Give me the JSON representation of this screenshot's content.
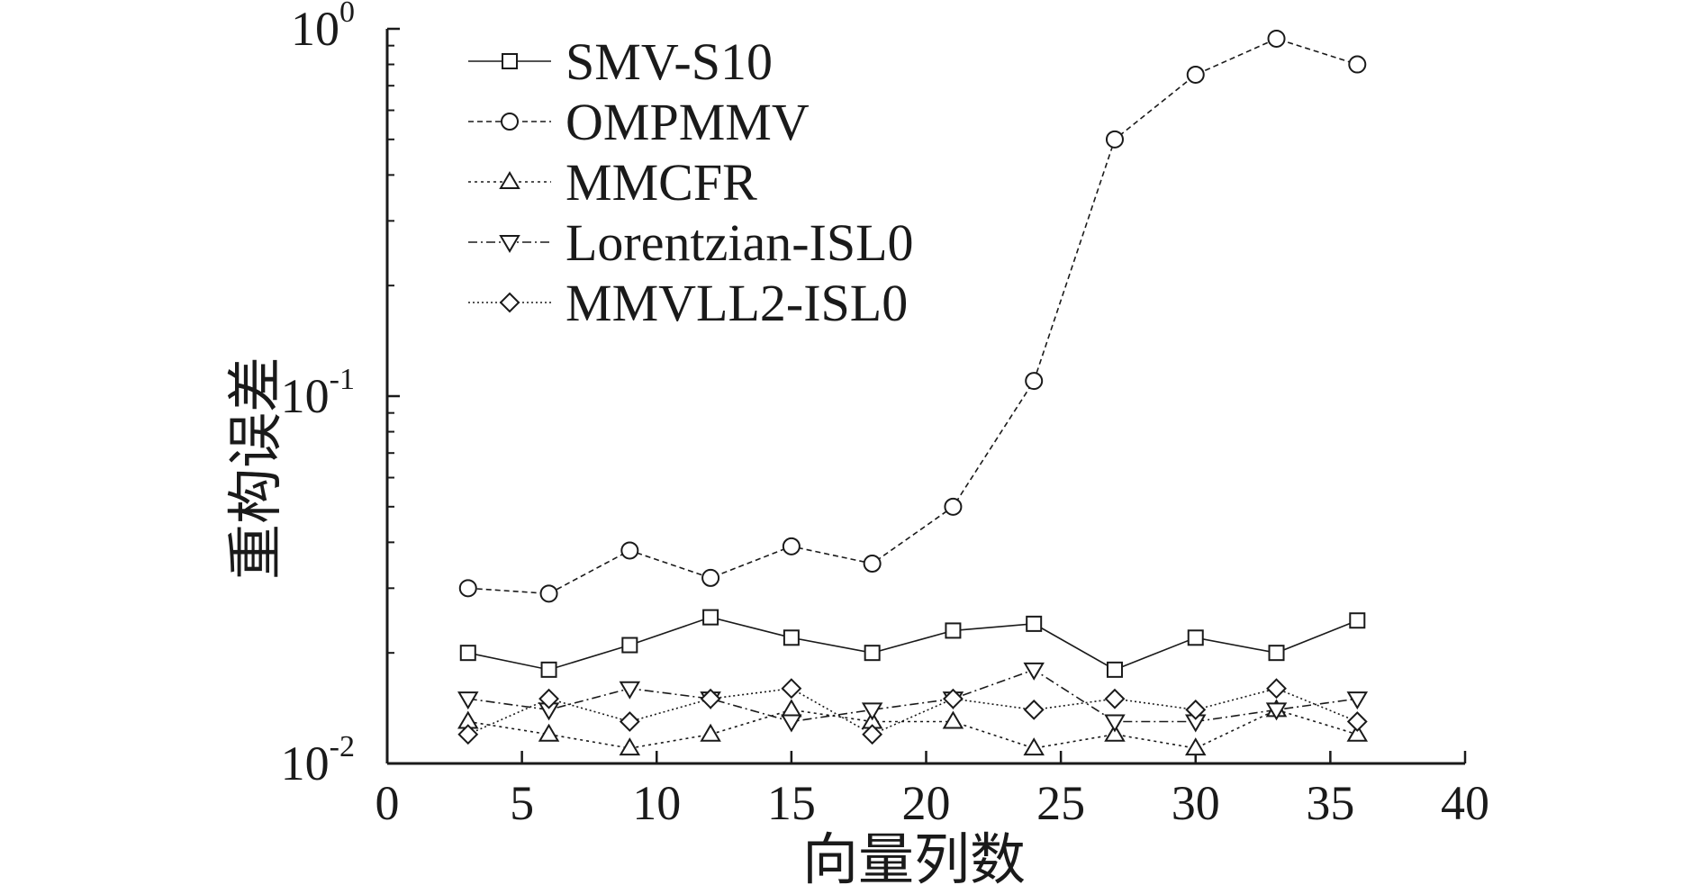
{
  "chart_data": {
    "type": "line",
    "xlabel": "向量列数",
    "ylabel": "重构误差",
    "xlim": [
      0,
      40
    ],
    "ylim": [
      0.01,
      1
    ],
    "yscale": "log",
    "xticks": [
      "0",
      "5",
      "10",
      "15",
      "20",
      "25",
      "30",
      "35",
      "40"
    ],
    "yticks": [
      {
        "base": "10",
        "exp": "-2",
        "value": 0.01
      },
      {
        "base": "10",
        "exp": "-1",
        "value": 0.1
      },
      {
        "base": "10",
        "exp": "0",
        "value": 1
      }
    ],
    "legend_position": "top-left",
    "grid": false,
    "x": [
      3,
      6,
      9,
      12,
      15,
      18,
      21,
      24,
      27,
      30,
      33,
      36
    ],
    "series": [
      {
        "name": "SMV-S10",
        "marker": "square",
        "line": "solid",
        "values": [
          0.02,
          0.018,
          0.021,
          0.025,
          0.022,
          0.02,
          0.023,
          0.024,
          0.018,
          0.022,
          0.02,
          0.0245
        ]
      },
      {
        "name": "OMPMMV",
        "marker": "circle",
        "line": "dashed",
        "values": [
          0.03,
          0.029,
          0.038,
          0.032,
          0.039,
          0.035,
          0.05,
          0.11,
          0.5,
          0.75,
          0.94,
          0.8
        ]
      },
      {
        "name": "MMCFR",
        "marker": "triangle-up",
        "line": "dotted",
        "values": [
          0.013,
          0.012,
          0.011,
          0.012,
          0.014,
          0.013,
          0.013,
          0.011,
          0.012,
          0.011,
          0.014,
          0.012
        ]
      },
      {
        "name": "Lorentzian-ISL0",
        "marker": "triangle-down",
        "line": "dashdot",
        "values": [
          0.015,
          0.014,
          0.016,
          0.015,
          0.013,
          0.014,
          0.015,
          0.018,
          0.013,
          0.013,
          0.014,
          0.015
        ]
      },
      {
        "name": "MMVLL2-ISL0",
        "marker": "diamond",
        "line": "densedot",
        "values": [
          0.012,
          0.015,
          0.013,
          0.015,
          0.016,
          0.012,
          0.015,
          0.014,
          0.015,
          0.014,
          0.016,
          0.013
        ]
      }
    ]
  }
}
